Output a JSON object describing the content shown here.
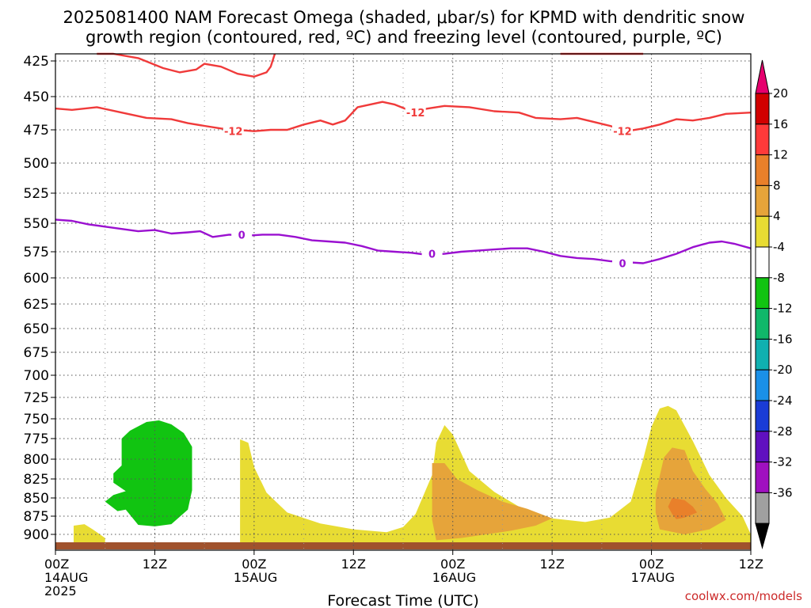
{
  "chart_data": {
    "type": "heatmap",
    "title_lines": [
      "2025081400 NAM Forecast Omega (shaded, μbar/s) for KPMD with dendritic snow",
      "growth region (contoured, red, ºC) and freezing level (contoured, purple, ºC)"
    ],
    "xlabel": "Forecast Time (UTC)",
    "credit": "coolwx.com/models",
    "x_range_hours": [
      0,
      84
    ],
    "y_range_hPa": [
      415,
      920
    ],
    "y_ticks": [
      425,
      450,
      475,
      500,
      525,
      550,
      575,
      600,
      625,
      650,
      675,
      700,
      725,
      750,
      775,
      800,
      825,
      850,
      875,
      900
    ],
    "x_ticks": [
      {
        "hour": 0,
        "lines": [
          "00Z",
          "14AUG",
          "2025"
        ]
      },
      {
        "hour": 12,
        "lines": [
          "12Z"
        ]
      },
      {
        "hour": 24,
        "lines": [
          "00Z",
          "15AUG"
        ]
      },
      {
        "hour": 36,
        "lines": [
          "12Z"
        ]
      },
      {
        "hour": 48,
        "lines": [
          "00Z",
          "16AUG"
        ]
      },
      {
        "hour": 60,
        "lines": [
          "12Z"
        ]
      },
      {
        "hour": 72,
        "lines": [
          "00Z",
          "17AUG"
        ]
      },
      {
        "hour": 84,
        "lines": [
          "12Z"
        ]
      }
    ],
    "grid": true,
    "colorbar": {
      "labels": [
        "20",
        "16",
        "12",
        "8",
        "4",
        "-4",
        "-8",
        "-12",
        "-16",
        "-20",
        "-24",
        "-28",
        "-32",
        "-36"
      ],
      "colors": [
        "#d10000",
        "#ff3a3a",
        "#e9802a",
        "#e6a43a",
        "#e8dc33",
        "#ffffff",
        "#11c411",
        "#10b86a",
        "#10b0b0",
        "#1a90e8",
        "#1a3cd6",
        "#6010c0",
        "#a010c0",
        "#a0a0a0"
      ],
      "top_arrow_color": "#e6006e",
      "bottom_arrow_color": "#000000"
    },
    "contours": [
      {
        "level": "-12",
        "color": "#f03a3a",
        "labels_at": [
          {
            "hour": 21.5,
            "p": 476
          },
          {
            "hour": 43.5,
            "p": 462
          },
          {
            "hour": 68.5,
            "p": 476
          }
        ],
        "points": [
          [
            0,
            459
          ],
          [
            2,
            460
          ],
          [
            5,
            458
          ],
          [
            8,
            462
          ],
          [
            11,
            466
          ],
          [
            14,
            467
          ],
          [
            16,
            470
          ],
          [
            18,
            472
          ],
          [
            20,
            474
          ],
          [
            22,
            475
          ],
          [
            24,
            476
          ],
          [
            26,
            475
          ],
          [
            28,
            475
          ],
          [
            30,
            471
          ],
          [
            32,
            468
          ],
          [
            33.5,
            471
          ],
          [
            35,
            468
          ],
          [
            36.5,
            458
          ],
          [
            38,
            456
          ],
          [
            39.5,
            454
          ],
          [
            41,
            456
          ],
          [
            43,
            461
          ],
          [
            45,
            459
          ],
          [
            47,
            457
          ],
          [
            50,
            458
          ],
          [
            53,
            461
          ],
          [
            56,
            462
          ],
          [
            58,
            466
          ],
          [
            61,
            467
          ],
          [
            63,
            466
          ],
          [
            65,
            469
          ],
          [
            67,
            472
          ],
          [
            69,
            476
          ],
          [
            71,
            474
          ],
          [
            73,
            471
          ],
          [
            75,
            467
          ],
          [
            77,
            468
          ],
          [
            79,
            466
          ],
          [
            81,
            463
          ],
          [
            84,
            462
          ]
        ]
      },
      {
        "level": "-12",
        "color": "#f03a3a",
        "labels_at": [],
        "points": [
          [
            5,
            415
          ],
          [
            7,
            420
          ],
          [
            10,
            423
          ],
          [
            13,
            430
          ],
          [
            15,
            433
          ],
          [
            17,
            431
          ],
          [
            18,
            427
          ],
          [
            20,
            429
          ],
          [
            22,
            434
          ],
          [
            24,
            436
          ],
          [
            25.5,
            433
          ],
          [
            26,
            429
          ],
          [
            26.5,
            415
          ]
        ]
      },
      {
        "level": "-12",
        "color": "#f03a3a",
        "labels_at": [],
        "points": [
          [
            61,
            414
          ],
          [
            63,
            417
          ],
          [
            65,
            418
          ],
          [
            67,
            418
          ],
          [
            69,
            416
          ],
          [
            71,
            414
          ]
        ]
      },
      {
        "level": "0",
        "color": "#9a10d0",
        "labels_at": [
          {
            "hour": 22.5,
            "p": 560
          },
          {
            "hour": 45.5,
            "p": 577
          },
          {
            "hour": 68.5,
            "p": 586
          }
        ],
        "points": [
          [
            0,
            547
          ],
          [
            2,
            548
          ],
          [
            4,
            551
          ],
          [
            6,
            553
          ],
          [
            8,
            555
          ],
          [
            10,
            557
          ],
          [
            12,
            556
          ],
          [
            14,
            559
          ],
          [
            16,
            558
          ],
          [
            17.5,
            557
          ],
          [
            19,
            562
          ],
          [
            21,
            560
          ],
          [
            23,
            561
          ],
          [
            25,
            560
          ],
          [
            27,
            560
          ],
          [
            29,
            562
          ],
          [
            31,
            565
          ],
          [
            33,
            566
          ],
          [
            35,
            567
          ],
          [
            37,
            570
          ],
          [
            39,
            574
          ],
          [
            41,
            575
          ],
          [
            43,
            576
          ],
          [
            45,
            578
          ],
          [
            47,
            577
          ],
          [
            49,
            575
          ],
          [
            51,
            574
          ],
          [
            53,
            573
          ],
          [
            55,
            572
          ],
          [
            57,
            572
          ],
          [
            59,
            575
          ],
          [
            61,
            579
          ],
          [
            63,
            581
          ],
          [
            65,
            582
          ],
          [
            67,
            584
          ],
          [
            69,
            585
          ],
          [
            71,
            586
          ],
          [
            73,
            582
          ],
          [
            75,
            577
          ],
          [
            77,
            571
          ],
          [
            79,
            567
          ],
          [
            80.5,
            566
          ],
          [
            82,
            568
          ],
          [
            84,
            572
          ]
        ]
      }
    ],
    "shaded_regions": [
      {
        "value": "-8",
        "color": "#11c411",
        "points": [
          [
            8,
            775
          ],
          [
            9,
            765
          ],
          [
            11,
            754
          ],
          [
            12.5,
            752
          ],
          [
            14,
            757
          ],
          [
            15.5,
            768
          ],
          [
            16.5,
            785
          ],
          [
            16.5,
            840
          ],
          [
            16,
            866
          ],
          [
            14,
            886
          ],
          [
            12,
            889
          ],
          [
            10,
            887
          ],
          [
            9.5,
            880
          ],
          [
            8.5,
            866
          ],
          [
            7.5,
            868
          ],
          [
            6,
            855
          ],
          [
            7,
            846
          ],
          [
            8.5,
            841
          ],
          [
            7,
            830
          ],
          [
            7,
            818
          ],
          [
            8,
            808
          ]
        ]
      },
      {
        "value": "4",
        "color": "#e8dc33",
        "points": [
          [
            2.2,
            888
          ],
          [
            3.5,
            886
          ],
          [
            4.5,
            893
          ],
          [
            6,
            905
          ],
          [
            6,
            915
          ],
          [
            2.2,
            915
          ]
        ]
      },
      {
        "value": "4",
        "color": "#e8dc33",
        "points": [
          [
            22.3,
            776
          ],
          [
            23.3,
            780
          ],
          [
            24,
            810
          ],
          [
            25.5,
            843
          ],
          [
            28,
            870
          ],
          [
            32,
            885
          ],
          [
            36,
            893
          ],
          [
            40,
            897
          ],
          [
            42,
            890
          ],
          [
            43.5,
            872
          ],
          [
            45.5,
            820
          ],
          [
            46,
            780
          ],
          [
            47,
            758
          ],
          [
            48,
            770
          ],
          [
            50,
            815
          ],
          [
            53,
            842
          ],
          [
            56,
            862
          ],
          [
            60,
            878
          ],
          [
            64,
            883
          ],
          [
            67,
            877
          ],
          [
            69.5,
            855
          ],
          [
            71,
            800
          ],
          [
            72,
            760
          ],
          [
            73,
            738
          ],
          [
            74,
            735
          ],
          [
            75,
            740
          ],
          [
            77,
            778
          ],
          [
            79,
            820
          ],
          [
            81,
            850
          ],
          [
            83,
            875
          ],
          [
            85,
            900
          ],
          [
            86,
            915
          ],
          [
            22.3,
            915
          ]
        ]
      },
      {
        "value": "8",
        "color": "#e6a43a",
        "points": [
          [
            45.5,
            805
          ],
          [
            47,
            805
          ],
          [
            48.5,
            825
          ],
          [
            51,
            840
          ],
          [
            54,
            855
          ],
          [
            57,
            865
          ],
          [
            60,
            878
          ],
          [
            58,
            888
          ],
          [
            55,
            895
          ],
          [
            52,
            900
          ],
          [
            49,
            905
          ],
          [
            46,
            908
          ],
          [
            45.5,
            880
          ]
        ]
      },
      {
        "value": "8",
        "color": "#e6a43a",
        "points": [
          [
            73.5,
            798
          ],
          [
            74.5,
            786
          ],
          [
            76,
            789
          ],
          [
            77,
            815
          ],
          [
            78.5,
            838
          ],
          [
            80,
            858
          ],
          [
            81,
            880
          ],
          [
            79,
            893
          ],
          [
            76,
            900
          ],
          [
            73,
            893
          ],
          [
            72.5,
            870
          ],
          [
            72.5,
            845
          ]
        ]
      },
      {
        "value": "12",
        "color": "#e9802a",
        "points": [
          [
            74.5,
            850
          ],
          [
            76,
            853
          ],
          [
            77,
            862
          ],
          [
            77.5,
            870
          ],
          [
            76,
            877
          ],
          [
            75,
            879
          ],
          [
            74.5,
            872
          ],
          [
            74,
            862
          ]
        ]
      }
    ],
    "ground_color": "#a0522d"
  }
}
